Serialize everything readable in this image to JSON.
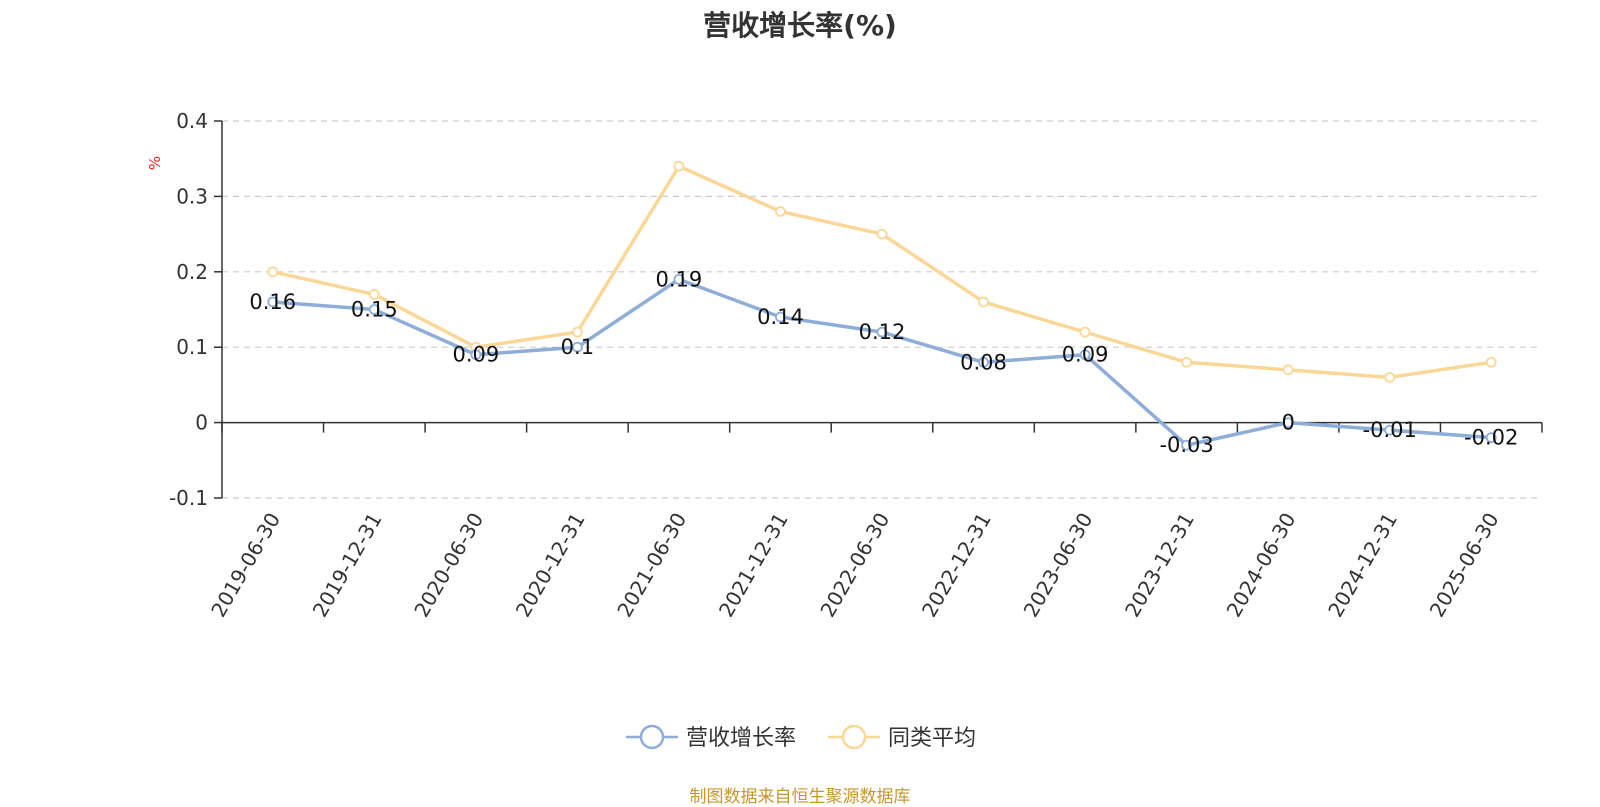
{
  "chart_data": {
    "type": "line",
    "title": "营收增长率(%)",
    "ylabel": "%",
    "x": [
      "2019-06-30",
      "2019-12-31",
      "2020-06-30",
      "2020-12-31",
      "2021-06-30",
      "2021-12-31",
      "2022-06-30",
      "2022-12-31",
      "2023-06-30",
      "2023-12-31",
      "2024-06-30",
      "2024-12-31",
      "2025-06-30"
    ],
    "ylim": [
      -0.1,
      0.4
    ],
    "yticks": [
      "0.4",
      "0.3",
      "0.2",
      "0.1",
      "0",
      "-0.1"
    ],
    "grid": true,
    "legend_position": "bottom",
    "series": [
      {
        "name": "营收增长率",
        "color": "#8eadd8",
        "values": [
          0.16,
          0.15,
          0.09,
          0.1,
          0.19,
          0.14,
          0.12,
          0.08,
          0.09,
          -0.03,
          0,
          -0.01,
          -0.02
        ],
        "labels": [
          "0.16",
          "0.15",
          "0.09",
          "0.1",
          "0.19",
          "0.14",
          "0.12",
          "0.08",
          "0.09",
          "-0.03",
          "0",
          "-0.01",
          "-0.02"
        ]
      },
      {
        "name": "同类平均",
        "color": "#fad797",
        "values": [
          0.2,
          0.17,
          0.1,
          0.12,
          0.34,
          0.28,
          0.25,
          0.16,
          0.12,
          0.08,
          0.07,
          0.06,
          0.08
        ]
      }
    ]
  },
  "footer": {
    "source": "制图数据来自恒生聚源数据库"
  }
}
